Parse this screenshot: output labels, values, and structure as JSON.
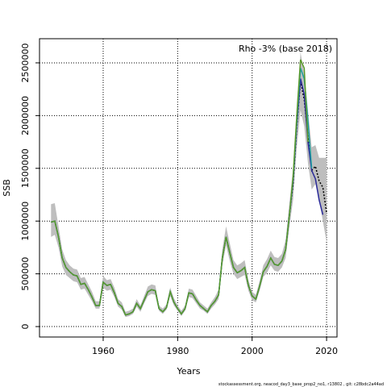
{
  "chart_data": {
    "type": "line",
    "annotation": "Rho -3% (base 2018)",
    "x_label": "Years",
    "y_label": "SSB",
    "footer": "stockassessment.org, neacod_day3_base_prop2_no1, r13802 , git: c28bdc2a44ad",
    "x": [
      1946,
      1947,
      1948,
      1949,
      1950,
      1951,
      1952,
      1953,
      1954,
      1955,
      1956,
      1957,
      1958,
      1959,
      1960,
      1961,
      1962,
      1963,
      1964,
      1965,
      1966,
      1967,
      1968,
      1969,
      1970,
      1971,
      1972,
      1973,
      1974,
      1975,
      1976,
      1977,
      1978,
      1979,
      1980,
      1981,
      1982,
      1983,
      1984,
      1985,
      1986,
      1987,
      1988,
      1989,
      1990,
      1991,
      1992,
      1993,
      1994,
      1995,
      1996,
      1997,
      1998,
      1999,
      2000,
      2001,
      2002,
      2003,
      2004,
      2005,
      2006,
      2007,
      2008,
      2009,
      2010,
      2011,
      2012,
      2013,
      2014,
      2015,
      2016,
      2017,
      2018,
      2019,
      2020
    ],
    "band": {
      "color": "#bebebe",
      "upper": [
        1160000,
        1170000,
        950000,
        730000,
        630000,
        580000,
        550000,
        540000,
        460000,
        470000,
        400000,
        330000,
        240000,
        240000,
        480000,
        440000,
        450000,
        370000,
        260000,
        230000,
        140000,
        150000,
        170000,
        260000,
        200000,
        290000,
        380000,
        400000,
        390000,
        200000,
        170000,
        210000,
        370000,
        270000,
        200000,
        150000,
        200000,
        360000,
        350000,
        290000,
        230000,
        200000,
        170000,
        230000,
        280000,
        350000,
        730000,
        950000,
        790000,
        630000,
        580000,
        600000,
        630000,
        440000,
        330000,
        300000,
        430000,
        580000,
        640000,
        720000,
        660000,
        650000,
        690000,
        820000,
        1170000,
        1500000,
        2100000,
        2600000,
        2400000,
        2050000,
        1700000,
        1720000,
        1600000,
        1600000,
        1600000
      ],
      "lower": [
        850000,
        870000,
        750000,
        570000,
        490000,
        460000,
        430000,
        420000,
        350000,
        360000,
        300000,
        240000,
        170000,
        170000,
        370000,
        340000,
        350000,
        280000,
        190000,
        160000,
        90000,
        100000,
        120000,
        190000,
        140000,
        220000,
        290000,
        310000,
        300000,
        150000,
        120000,
        160000,
        290000,
        200000,
        150000,
        100000,
        150000,
        280000,
        270000,
        220000,
        170000,
        150000,
        120000,
        170000,
        210000,
        260000,
        580000,
        770000,
        620000,
        500000,
        450000,
        470000,
        490000,
        340000,
        250000,
        230000,
        340000,
        470000,
        510000,
        580000,
        530000,
        520000,
        560000,
        650000,
        940000,
        1200000,
        1700000,
        2050000,
        1900000,
        1550000,
        1300000,
        1350000,
        1200000,
        1000000,
        800000
      ]
    },
    "series": [
      {
        "color": "#000000",
        "linestyle": "dotted",
        "values": [
          990000,
          1000000,
          850000,
          650000,
          560000,
          520000,
          490000,
          480000,
          400000,
          410000,
          350000,
          280000,
          200000,
          200000,
          420000,
          390000,
          400000,
          320000,
          220000,
          190000,
          110000,
          120000,
          140000,
          220000,
          170000,
          250000,
          330000,
          350000,
          340000,
          170000,
          140000,
          180000,
          330000,
          230000,
          170000,
          120000,
          170000,
          320000,
          310000,
          250000,
          200000,
          170000,
          140000,
          200000,
          240000,
          300000,
          650000,
          850000,
          700000,
          560000,
          510000,
          530000,
          560000,
          390000,
          290000,
          260000,
          380000,
          520000,
          570000,
          650000,
          590000,
          580000,
          620000,
          730000,
          1050000,
          1350000,
          1900000,
          2330000,
          2150000,
          1800000,
          1480000,
          1520000,
          1380000,
          1320000,
          1080000
        ]
      },
      {
        "color": "#2a2a9a",
        "linestyle": "solid",
        "values": [
          990000,
          1000000,
          850000,
          650000,
          560000,
          520000,
          490000,
          480000,
          400000,
          410000,
          350000,
          280000,
          200000,
          200000,
          420000,
          390000,
          400000,
          320000,
          220000,
          190000,
          110000,
          120000,
          140000,
          220000,
          170000,
          250000,
          330000,
          350000,
          340000,
          170000,
          140000,
          180000,
          330000,
          230000,
          170000,
          120000,
          170000,
          320000,
          310000,
          250000,
          200000,
          170000,
          140000,
          200000,
          240000,
          300000,
          650000,
          850000,
          700000,
          560000,
          510000,
          530000,
          560000,
          390000,
          290000,
          260000,
          380000,
          520000,
          570000,
          650000,
          590000,
          580000,
          620000,
          730000,
          1050000,
          1380000,
          1920000,
          2350000,
          2200000,
          1750000,
          1480000,
          1400000,
          1200000,
          1060000,
          null
        ]
      },
      {
        "color": "#1f9f9f",
        "linestyle": "solid",
        "values": [
          990000,
          1000000,
          850000,
          650000,
          560000,
          520000,
          490000,
          480000,
          400000,
          410000,
          350000,
          280000,
          200000,
          200000,
          420000,
          390000,
          400000,
          320000,
          220000,
          190000,
          110000,
          120000,
          140000,
          220000,
          170000,
          250000,
          330000,
          350000,
          340000,
          170000,
          140000,
          180000,
          330000,
          230000,
          170000,
          120000,
          170000,
          320000,
          310000,
          250000,
          200000,
          170000,
          140000,
          200000,
          240000,
          300000,
          650000,
          850000,
          700000,
          560000,
          510000,
          530000,
          560000,
          390000,
          290000,
          260000,
          380000,
          520000,
          570000,
          650000,
          590000,
          580000,
          620000,
          730000,
          1050000,
          1400000,
          1950000,
          2450000,
          2350000,
          1950000,
          1500000,
          null,
          null,
          null,
          null
        ]
      },
      {
        "color": "#5a9a2a",
        "linestyle": "solid",
        "values": [
          990000,
          1000000,
          850000,
          650000,
          560000,
          520000,
          490000,
          480000,
          400000,
          410000,
          350000,
          280000,
          200000,
          200000,
          420000,
          390000,
          400000,
          320000,
          220000,
          190000,
          110000,
          120000,
          140000,
          220000,
          170000,
          250000,
          330000,
          350000,
          340000,
          170000,
          140000,
          180000,
          330000,
          230000,
          170000,
          120000,
          170000,
          320000,
          310000,
          250000,
          200000,
          170000,
          140000,
          200000,
          240000,
          300000,
          650000,
          850000,
          700000,
          560000,
          510000,
          530000,
          560000,
          390000,
          290000,
          260000,
          380000,
          520000,
          570000,
          650000,
          590000,
          580000,
          620000,
          730000,
          1050000,
          1420000,
          2000000,
          2530000,
          2450000,
          1750000,
          null,
          null,
          null,
          null,
          null
        ]
      }
    ],
    "xlim": [
      1942.9,
      2022.8
    ],
    "xticks": [
      1960,
      1980,
      2000,
      2020
    ],
    "ylim": [
      -99000,
      2729000
    ],
    "yticks": [
      0,
      500000,
      1000000,
      1500000,
      2000000,
      2500000
    ],
    "grid": true
  }
}
